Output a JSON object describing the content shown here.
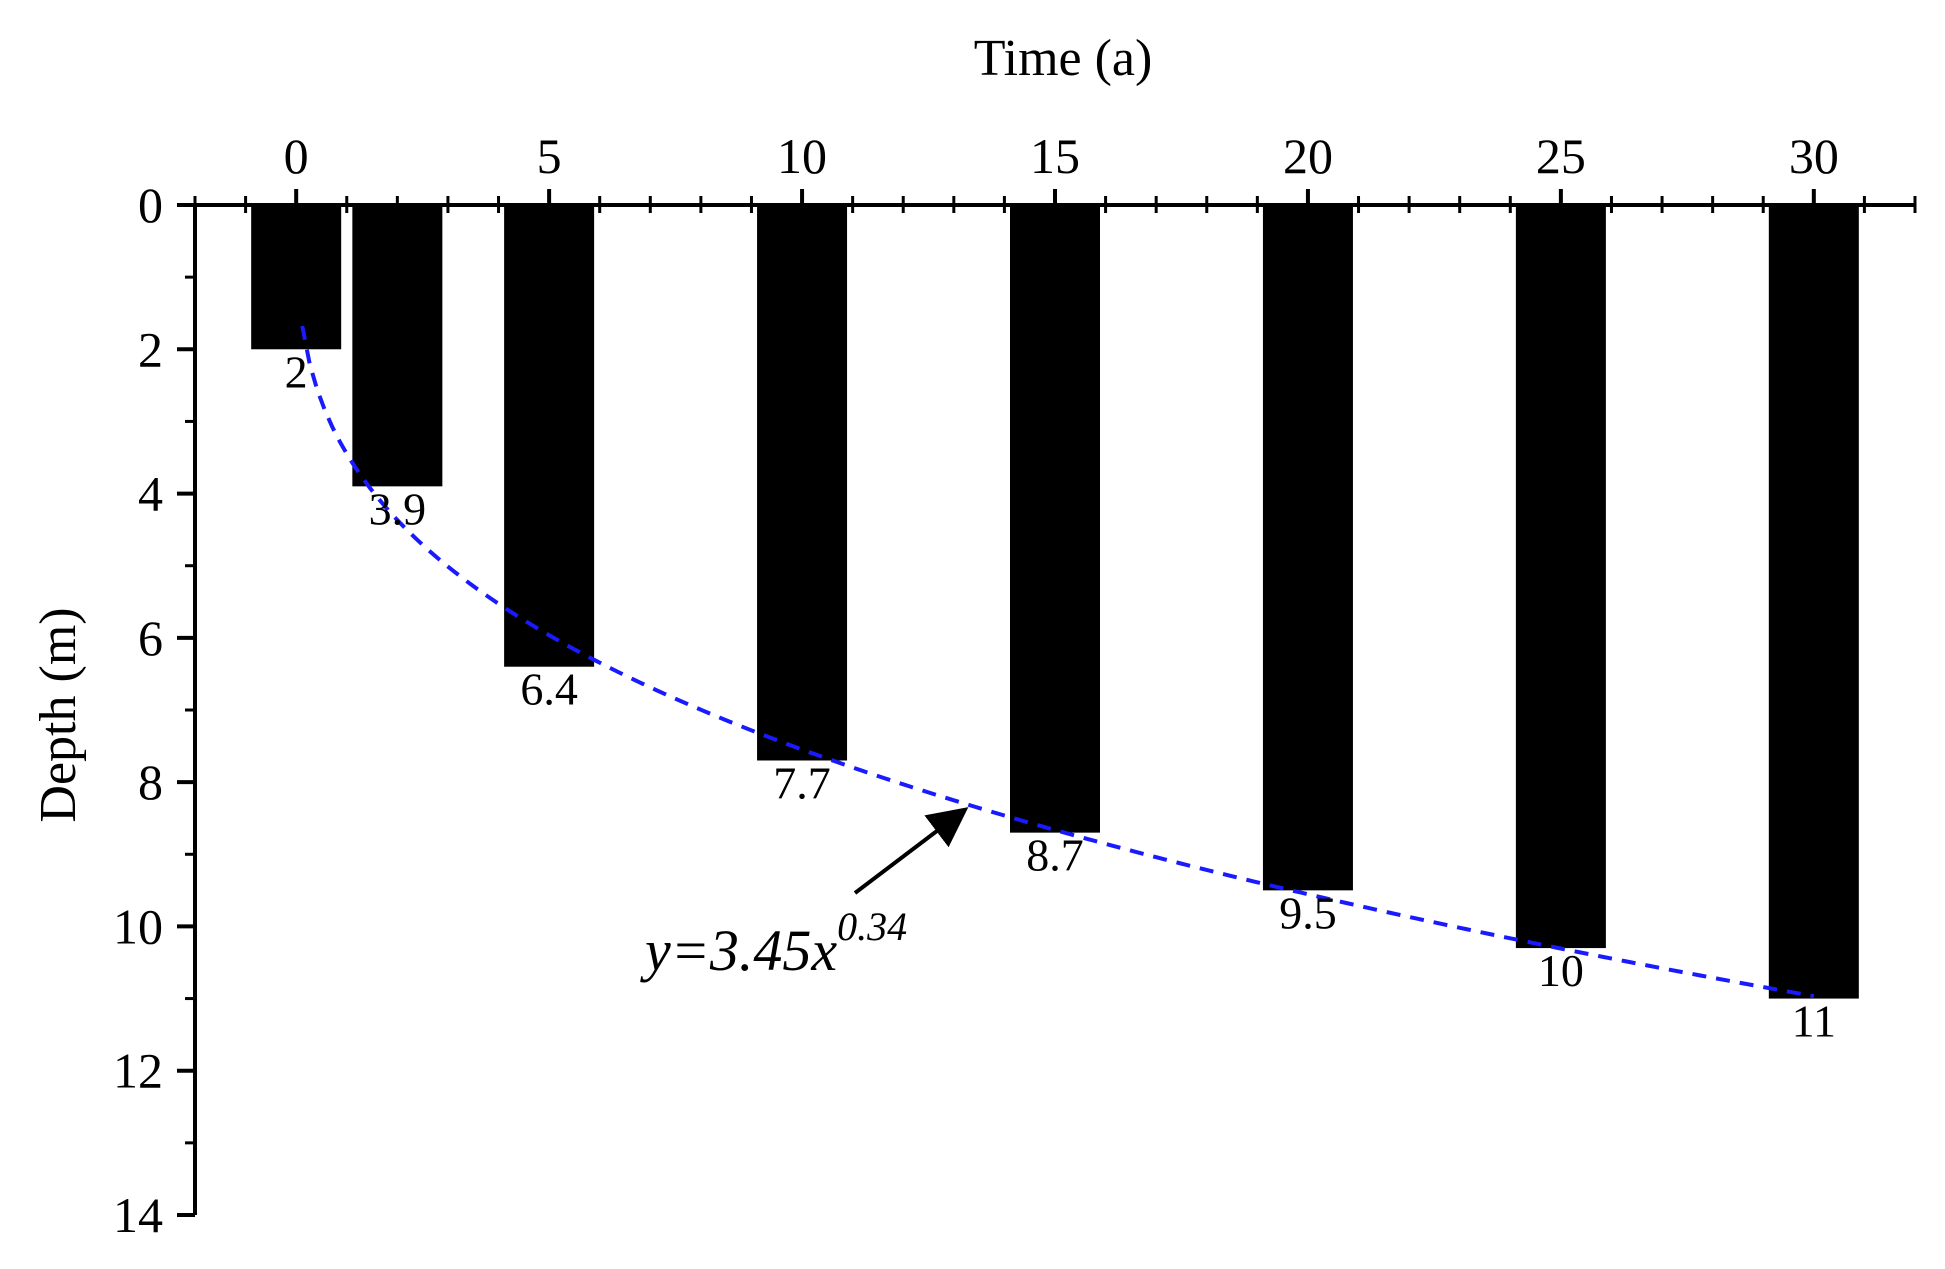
{
  "chart_data": {
    "type": "bar",
    "xlabel": "Time (a)",
    "ylabel": "Depth (m)",
    "x_axis_position": "top",
    "y_axis_inverted": true,
    "xlim": [
      -2,
      32
    ],
    "ylim": [
      0,
      14
    ],
    "x_ticks": [
      0,
      5,
      10,
      15,
      20,
      25,
      30
    ],
    "y_ticks": [
      0,
      2,
      4,
      6,
      8,
      10,
      12,
      14
    ],
    "x_minor_step": 1,
    "y_minor_step": 1,
    "bar_color": "#000000",
    "x": [
      0,
      2,
      5,
      10,
      15,
      20,
      25,
      30
    ],
    "values": [
      2,
      3.9,
      6.4,
      7.7,
      8.7,
      9.5,
      10.3,
      11
    ],
    "data_labels": [
      "2",
      "3.9",
      "6.4",
      "7.7",
      "8.7",
      "9.5",
      "10",
      "11"
    ],
    "fit": {
      "equation_base": "y=3.45x",
      "equation_exponent": "0.34",
      "a": 3.45,
      "b": 0.34,
      "x_range": [
        0,
        30
      ],
      "color": "#1a1aff",
      "style": "dashed"
    },
    "grid": false,
    "legend": "none"
  }
}
